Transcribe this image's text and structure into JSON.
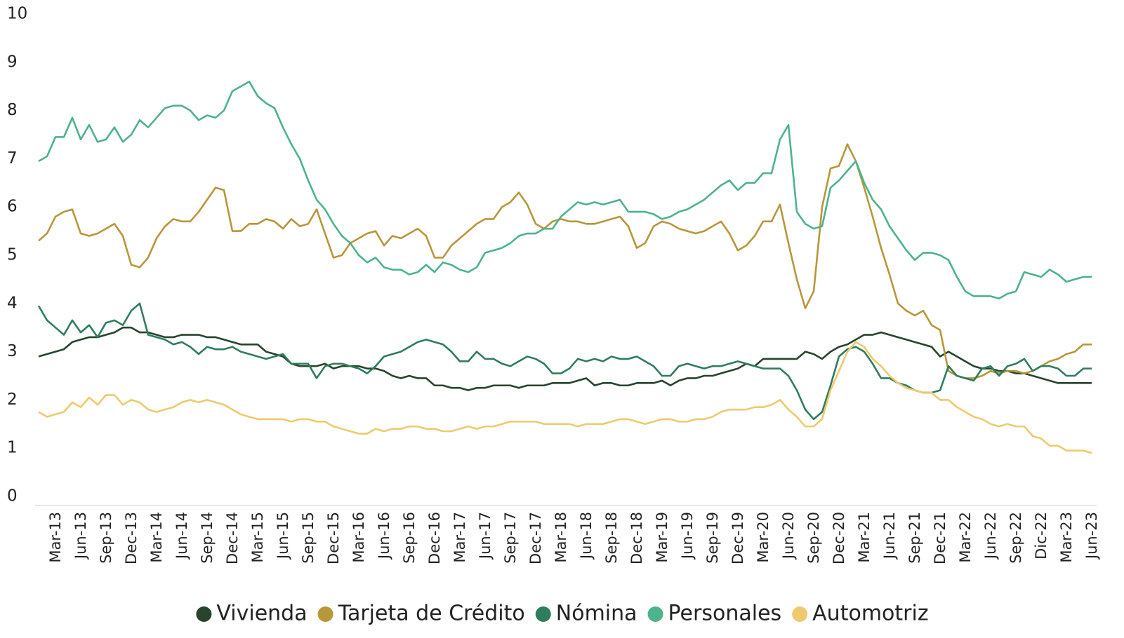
{
  "chart_data": {
    "type": "line",
    "categories": [
      null,
      null,
      "Mar-13",
      null,
      null,
      "Jun-13",
      null,
      null,
      "Sep-13",
      null,
      null,
      "Dec-13",
      null,
      null,
      "Mar-14",
      null,
      null,
      "Jun-14",
      null,
      null,
      "Sep-14",
      null,
      null,
      "Dec-14",
      null,
      null,
      "Mar-15",
      null,
      null,
      "Jun-15",
      null,
      null,
      "Sep-15",
      null,
      null,
      "Dec-15",
      null,
      null,
      "Mar-16",
      null,
      null,
      "Jun-16",
      null,
      null,
      "Sep-16",
      null,
      null,
      "Dec-16",
      null,
      null,
      "Mar-17",
      null,
      null,
      "Jun-17",
      null,
      null,
      "Sep-17",
      null,
      null,
      "Dec-17",
      null,
      null,
      "Mar-18",
      null,
      null,
      "Jun-18",
      null,
      null,
      "Sep-18",
      null,
      null,
      "Dec-18",
      null,
      null,
      "Mar-19",
      null,
      null,
      "Jun-19",
      null,
      null,
      "Sep-19",
      null,
      null,
      "Dec-19",
      null,
      null,
      "Mar-20",
      null,
      null,
      "Jun-20",
      null,
      null,
      "Sep-20",
      null,
      null,
      "Dec-20",
      null,
      null,
      "Mar-21",
      null,
      null,
      "Jun-21",
      null,
      null,
      "Sep-21",
      null,
      null,
      "Dec-21",
      null,
      null,
      "Mar-22",
      null,
      null,
      "Jun-22",
      null,
      null,
      "Sep-22",
      null,
      null,
      "Dic-22",
      null,
      null,
      "Mar-23",
      null,
      null,
      "Jun-23"
    ],
    "series": [
      {
        "name": "Vivienda",
        "color": "#27442d",
        "values": [
          2.9,
          2.95,
          3.0,
          3.05,
          3.2,
          3.25,
          3.3,
          3.3,
          3.35,
          3.4,
          3.5,
          3.5,
          3.4,
          3.4,
          3.35,
          3.3,
          3.3,
          3.35,
          3.35,
          3.35,
          3.3,
          3.3,
          3.25,
          3.2,
          3.15,
          3.15,
          3.15,
          3.0,
          2.95,
          2.9,
          2.75,
          2.7,
          2.7,
          2.7,
          2.75,
          2.65,
          2.7,
          2.7,
          2.7,
          2.65,
          2.65,
          2.6,
          2.5,
          2.45,
          2.5,
          2.45,
          2.45,
          2.3,
          2.3,
          2.25,
          2.25,
          2.2,
          2.25,
          2.25,
          2.3,
          2.3,
          2.3,
          2.25,
          2.3,
          2.3,
          2.3,
          2.35,
          2.35,
          2.35,
          2.4,
          2.45,
          2.3,
          2.35,
          2.35,
          2.3,
          2.3,
          2.35,
          2.35,
          2.35,
          2.4,
          2.3,
          2.4,
          2.45,
          2.45,
          2.5,
          2.5,
          2.55,
          2.6,
          2.65,
          2.75,
          2.7,
          2.85,
          2.85,
          2.85,
          2.85,
          2.85,
          3.0,
          2.95,
          2.85,
          3.0,
          3.1,
          3.15,
          3.25,
          3.35,
          3.35,
          3.4,
          3.35,
          3.3,
          3.25,
          3.2,
          3.15,
          3.1,
          2.9,
          3.0,
          2.9,
          2.8,
          2.7,
          2.65,
          2.65,
          2.6,
          2.6,
          2.55,
          2.55,
          2.5,
          2.45,
          2.4,
          2.35,
          2.35,
          2.35,
          2.35,
          2.35
        ]
      },
      {
        "name": "Tarjeta de Crédito",
        "color": "#b8963a",
        "values": [
          5.3,
          5.45,
          5.8,
          5.9,
          5.95,
          5.45,
          5.4,
          5.45,
          5.55,
          5.65,
          5.4,
          4.8,
          4.75,
          4.95,
          5.35,
          5.6,
          5.75,
          5.7,
          5.7,
          5.9,
          6.15,
          6.4,
          6.35,
          5.5,
          5.5,
          5.65,
          5.65,
          5.75,
          5.7,
          5.55,
          5.75,
          5.6,
          5.65,
          5.95,
          5.45,
          4.95,
          5.0,
          5.25,
          5.35,
          5.45,
          5.5,
          5.2,
          5.4,
          5.35,
          5.45,
          5.55,
          5.4,
          4.95,
          4.95,
          5.2,
          5.35,
          5.5,
          5.65,
          5.75,
          5.75,
          6.0,
          6.1,
          6.3,
          6.05,
          5.65,
          5.55,
          5.7,
          5.75,
          5.7,
          5.7,
          5.65,
          5.65,
          5.7,
          5.75,
          5.8,
          5.6,
          5.15,
          5.25,
          5.6,
          5.7,
          5.65,
          5.55,
          5.5,
          5.45,
          5.5,
          5.6,
          5.7,
          5.45,
          5.1,
          5.2,
          5.4,
          5.7,
          5.7,
          6.05,
          5.25,
          4.5,
          3.9,
          4.25,
          6.0,
          6.8,
          6.85,
          7.3,
          6.95,
          6.4,
          5.8,
          5.15,
          4.6,
          4.0,
          3.85,
          3.75,
          3.85,
          3.55,
          3.45,
          2.6,
          2.5,
          2.45,
          2.45,
          2.5,
          2.6,
          2.55,
          2.6,
          2.6,
          2.55,
          2.6,
          2.7,
          2.8,
          2.85,
          2.95,
          3.0,
          3.15,
          3.15
        ]
      },
      {
        "name": "Nómina",
        "color": "#2e7d5e",
        "values": [
          3.95,
          3.65,
          3.5,
          3.35,
          3.65,
          3.4,
          3.55,
          3.3,
          3.6,
          3.65,
          3.55,
          3.85,
          4.0,
          3.35,
          3.3,
          3.25,
          3.15,
          3.2,
          3.1,
          2.95,
          3.1,
          3.05,
          3.05,
          3.1,
          3.0,
          2.95,
          2.9,
          2.85,
          2.9,
          2.95,
          2.75,
          2.75,
          2.75,
          2.45,
          2.7,
          2.75,
          2.75,
          2.7,
          2.65,
          2.55,
          2.7,
          2.9,
          2.95,
          3.0,
          3.1,
          3.2,
          3.25,
          3.2,
          3.15,
          3.0,
          2.8,
          2.8,
          3.0,
          2.85,
          2.85,
          2.75,
          2.7,
          2.8,
          2.9,
          2.85,
          2.75,
          2.55,
          2.55,
          2.65,
          2.85,
          2.8,
          2.85,
          2.8,
          2.9,
          2.85,
          2.85,
          2.9,
          2.8,
          2.7,
          2.5,
          2.5,
          2.7,
          2.75,
          2.7,
          2.65,
          2.7,
          2.7,
          2.75,
          2.8,
          2.75,
          2.7,
          2.65,
          2.65,
          2.65,
          2.5,
          2.2,
          1.8,
          1.6,
          1.75,
          2.3,
          2.9,
          3.05,
          3.1,
          3.0,
          2.75,
          2.45,
          2.45,
          2.35,
          2.3,
          2.2,
          2.15,
          2.15,
          2.2,
          2.7,
          2.5,
          2.45,
          2.4,
          2.65,
          2.7,
          2.5,
          2.7,
          2.75,
          2.85,
          2.6,
          2.7,
          2.7,
          2.65,
          2.5,
          2.5,
          2.65,
          2.65
        ]
      },
      {
        "name": "Personales",
        "color": "#4db38c",
        "values": [
          6.95,
          7.05,
          7.45,
          7.45,
          7.85,
          7.4,
          7.7,
          7.35,
          7.4,
          7.65,
          7.35,
          7.5,
          7.8,
          7.65,
          7.85,
          8.05,
          8.1,
          8.1,
          8.0,
          7.8,
          7.9,
          7.85,
          8.0,
          8.4,
          8.5,
          8.6,
          8.3,
          8.15,
          8.05,
          7.65,
          7.3,
          7.0,
          6.55,
          6.15,
          5.95,
          5.65,
          5.4,
          5.25,
          5.0,
          4.85,
          4.95,
          4.75,
          4.7,
          4.7,
          4.6,
          4.65,
          4.8,
          4.65,
          4.85,
          4.8,
          4.7,
          4.65,
          4.75,
          5.05,
          5.1,
          5.15,
          5.25,
          5.4,
          5.45,
          5.45,
          5.55,
          5.55,
          5.8,
          5.95,
          6.1,
          6.05,
          6.1,
          6.05,
          6.1,
          6.15,
          5.9,
          5.9,
          5.9,
          5.85,
          5.75,
          5.8,
          5.9,
          5.95,
          6.05,
          6.15,
          6.3,
          6.45,
          6.55,
          6.35,
          6.5,
          6.5,
          6.7,
          6.7,
          7.4,
          7.7,
          5.9,
          5.65,
          5.55,
          5.6,
          6.4,
          6.55,
          6.75,
          6.95,
          6.5,
          6.15,
          5.95,
          5.6,
          5.35,
          5.1,
          4.9,
          5.05,
          5.05,
          5.0,
          4.9,
          4.55,
          4.25,
          4.15,
          4.15,
          4.15,
          4.1,
          4.2,
          4.25,
          4.65,
          4.6,
          4.55,
          4.7,
          4.6,
          4.45,
          4.5,
          4.55,
          4.55
        ]
      },
      {
        "name": "Automotriz",
        "color": "#edca6f",
        "values": [
          1.75,
          1.65,
          1.7,
          1.75,
          1.95,
          1.85,
          2.05,
          1.9,
          2.1,
          2.1,
          1.9,
          2.0,
          1.95,
          1.8,
          1.75,
          1.8,
          1.85,
          1.95,
          2.0,
          1.95,
          2.0,
          1.95,
          1.9,
          1.8,
          1.7,
          1.65,
          1.6,
          1.6,
          1.6,
          1.6,
          1.55,
          1.6,
          1.6,
          1.55,
          1.55,
          1.45,
          1.4,
          1.35,
          1.3,
          1.3,
          1.4,
          1.35,
          1.4,
          1.4,
          1.45,
          1.45,
          1.4,
          1.4,
          1.35,
          1.35,
          1.4,
          1.45,
          1.4,
          1.45,
          1.45,
          1.5,
          1.55,
          1.55,
          1.55,
          1.55,
          1.5,
          1.5,
          1.5,
          1.5,
          1.45,
          1.5,
          1.5,
          1.5,
          1.55,
          1.6,
          1.6,
          1.55,
          1.5,
          1.55,
          1.6,
          1.6,
          1.55,
          1.55,
          1.6,
          1.6,
          1.65,
          1.75,
          1.8,
          1.8,
          1.8,
          1.85,
          1.85,
          1.9,
          2.0,
          1.8,
          1.65,
          1.45,
          1.45,
          1.6,
          2.2,
          2.6,
          3.0,
          3.2,
          3.1,
          2.85,
          2.7,
          2.5,
          2.35,
          2.25,
          2.2,
          2.15,
          2.15,
          2.0,
          2.0,
          1.85,
          1.75,
          1.65,
          1.6,
          1.5,
          1.45,
          1.5,
          1.45,
          1.45,
          1.25,
          1.2,
          1.05,
          1.05,
          0.95,
          0.95,
          0.95,
          0.9
        ]
      }
    ],
    "ylim": [
      0,
      10
    ],
    "yticks": [
      0,
      1,
      2,
      3,
      4,
      5,
      6,
      7,
      8,
      9,
      10
    ],
    "grid": false,
    "legend": "bottom"
  }
}
